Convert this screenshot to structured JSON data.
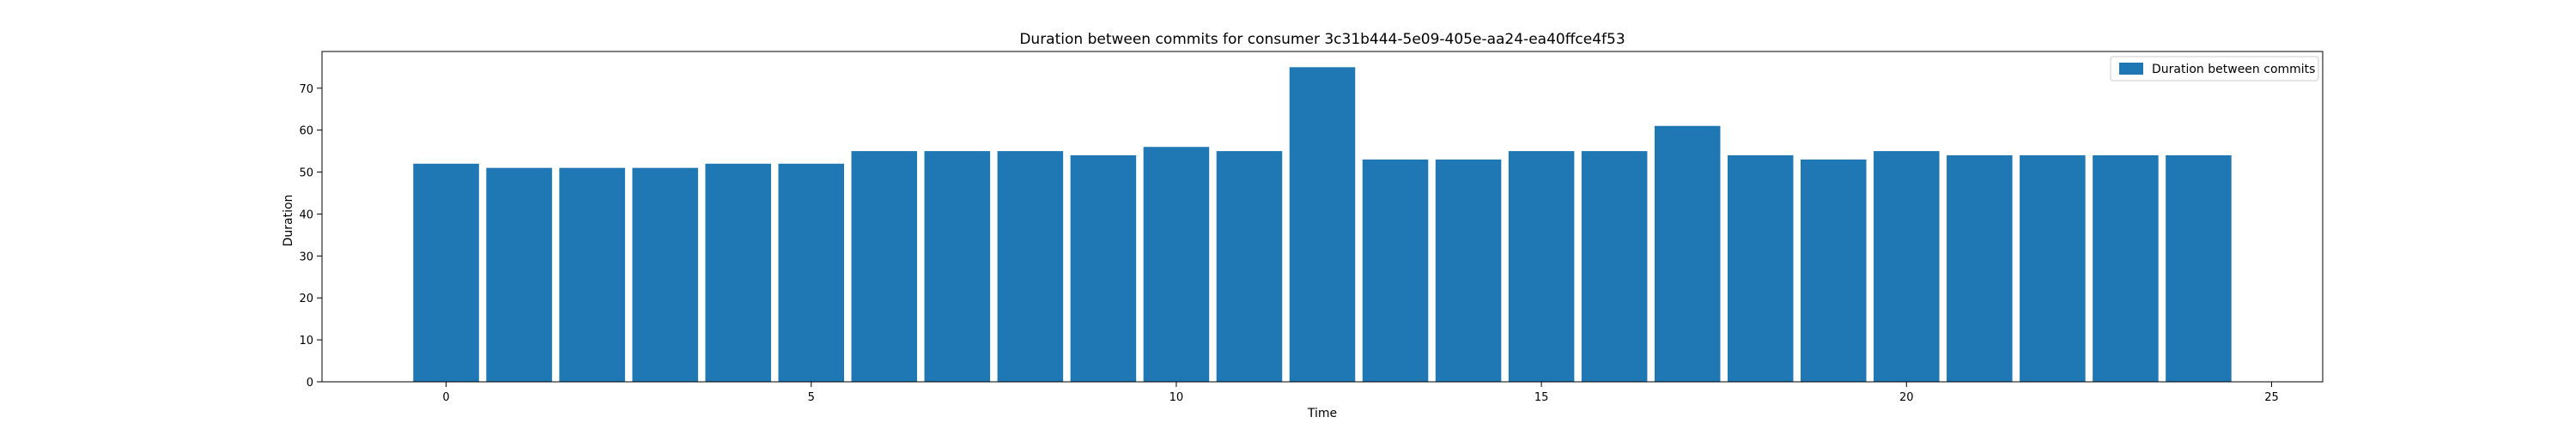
{
  "chart_data": {
    "type": "bar",
    "title": "Duration between commits for consumer 3c31b444-5e09-405e-aa24-ea40ffce4f53",
    "xlabel": "Time",
    "ylabel": "Duration",
    "x": [
      0,
      1,
      2,
      3,
      4,
      5,
      6,
      7,
      8,
      9,
      10,
      11,
      12,
      13,
      14,
      15,
      16,
      17,
      18,
      19,
      20,
      21,
      22,
      23,
      24
    ],
    "series": [
      {
        "name": "Duration between commits",
        "color": "#1f77b4",
        "values": [
          52,
          51,
          51,
          51,
          52,
          52,
          55,
          55,
          55,
          54,
          56,
          55,
          75,
          53,
          53,
          55,
          55,
          61,
          54,
          53,
          55,
          54,
          54,
          54,
          54
        ]
      }
    ],
    "xlim": [
      -1.7,
      25.7
    ],
    "ylim": [
      0,
      78.75
    ],
    "xticks": [
      0,
      5,
      10,
      15,
      20,
      25
    ],
    "yticks": [
      0,
      10,
      20,
      30,
      40,
      50,
      60,
      70
    ],
    "grid": false,
    "legend_position": "top-right"
  }
}
